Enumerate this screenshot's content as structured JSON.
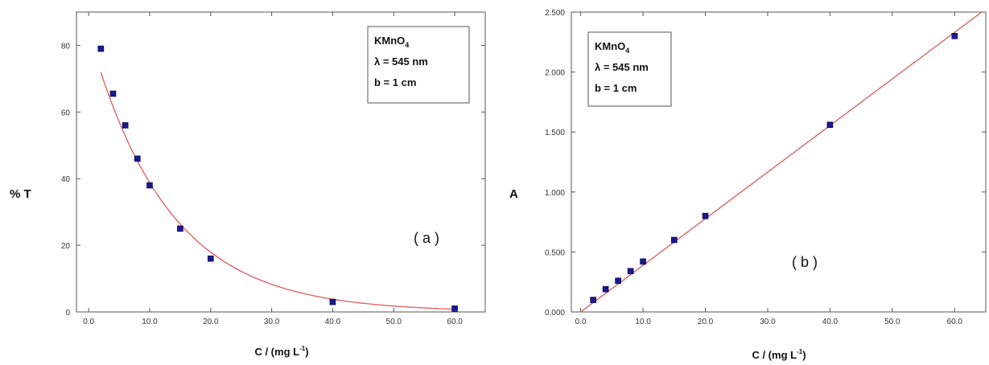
{
  "chart_data": [
    {
      "type": "scatter",
      "panel_label": "( a )",
      "ylabel": "% T",
      "xlabel_main": "C / (mg L",
      "xlabel_sup": "-1",
      "xlabel_end": ")",
      "legend": {
        "line1": "KMnO",
        "line1_sub": "4",
        "line2": "λ = 545 nm",
        "line3": "b = 1 cm",
        "placement": "top-right"
      },
      "xlim": [
        -2,
        65
      ],
      "ylim": [
        0,
        90
      ],
      "x_ticks": [
        0,
        10,
        20,
        30,
        40,
        50,
        60
      ],
      "x_tick_labels": [
        "0.0",
        "10.0",
        "20.0",
        "30.0",
        "40.0",
        "50.0",
        "60.0"
      ],
      "y_ticks": [
        0,
        20,
        40,
        60,
        80
      ],
      "y_tick_labels": [
        "0",
        "20",
        "40",
        "60",
        "80"
      ],
      "series": [
        {
          "x": [
            2,
            4,
            6,
            8,
            10,
            15,
            20,
            40,
            60
          ],
          "y": [
            79,
            65.5,
            56,
            46,
            38,
            25,
            16,
            3,
            1
          ]
        }
      ],
      "fit": "exponential decay curve",
      "colors": {
        "points": "#1a1a8c",
        "fit": "#e05a5a"
      }
    },
    {
      "type": "scatter",
      "panel_label": "( b )",
      "ylabel": "A",
      "xlabel_main": "C / (mg L",
      "xlabel_sup": "-1",
      "xlabel_end": ")",
      "legend": {
        "line1": "KMnO",
        "line1_sub": "4",
        "line2": "λ = 545 nm",
        "line3": "b = 1 cm",
        "placement": "top-left"
      },
      "xlim": [
        -1.5,
        65
      ],
      "ylim": [
        0,
        2.5
      ],
      "x_ticks": [
        0,
        10,
        20,
        30,
        40,
        50,
        60
      ],
      "x_tick_labels": [
        "0.0",
        "10.0",
        "20.0",
        "30.0",
        "40.0",
        "50.0",
        "60.0"
      ],
      "y_ticks": [
        0,
        0.5,
        1,
        1.5,
        2,
        2.5
      ],
      "y_tick_labels": [
        "0.000",
        "0.500",
        "1.000",
        "1.500",
        "2.000",
        "2.500"
      ],
      "series": [
        {
          "x": [
            2,
            4,
            6,
            8,
            10,
            15,
            20,
            40,
            60
          ],
          "y": [
            0.1,
            0.19,
            0.26,
            0.34,
            0.42,
            0.6,
            0.8,
            1.56,
            2.3
          ]
        }
      ],
      "fit": "linear fit through origin",
      "colors": {
        "points": "#1a1a8c",
        "fit": "#e05a5a"
      }
    }
  ]
}
